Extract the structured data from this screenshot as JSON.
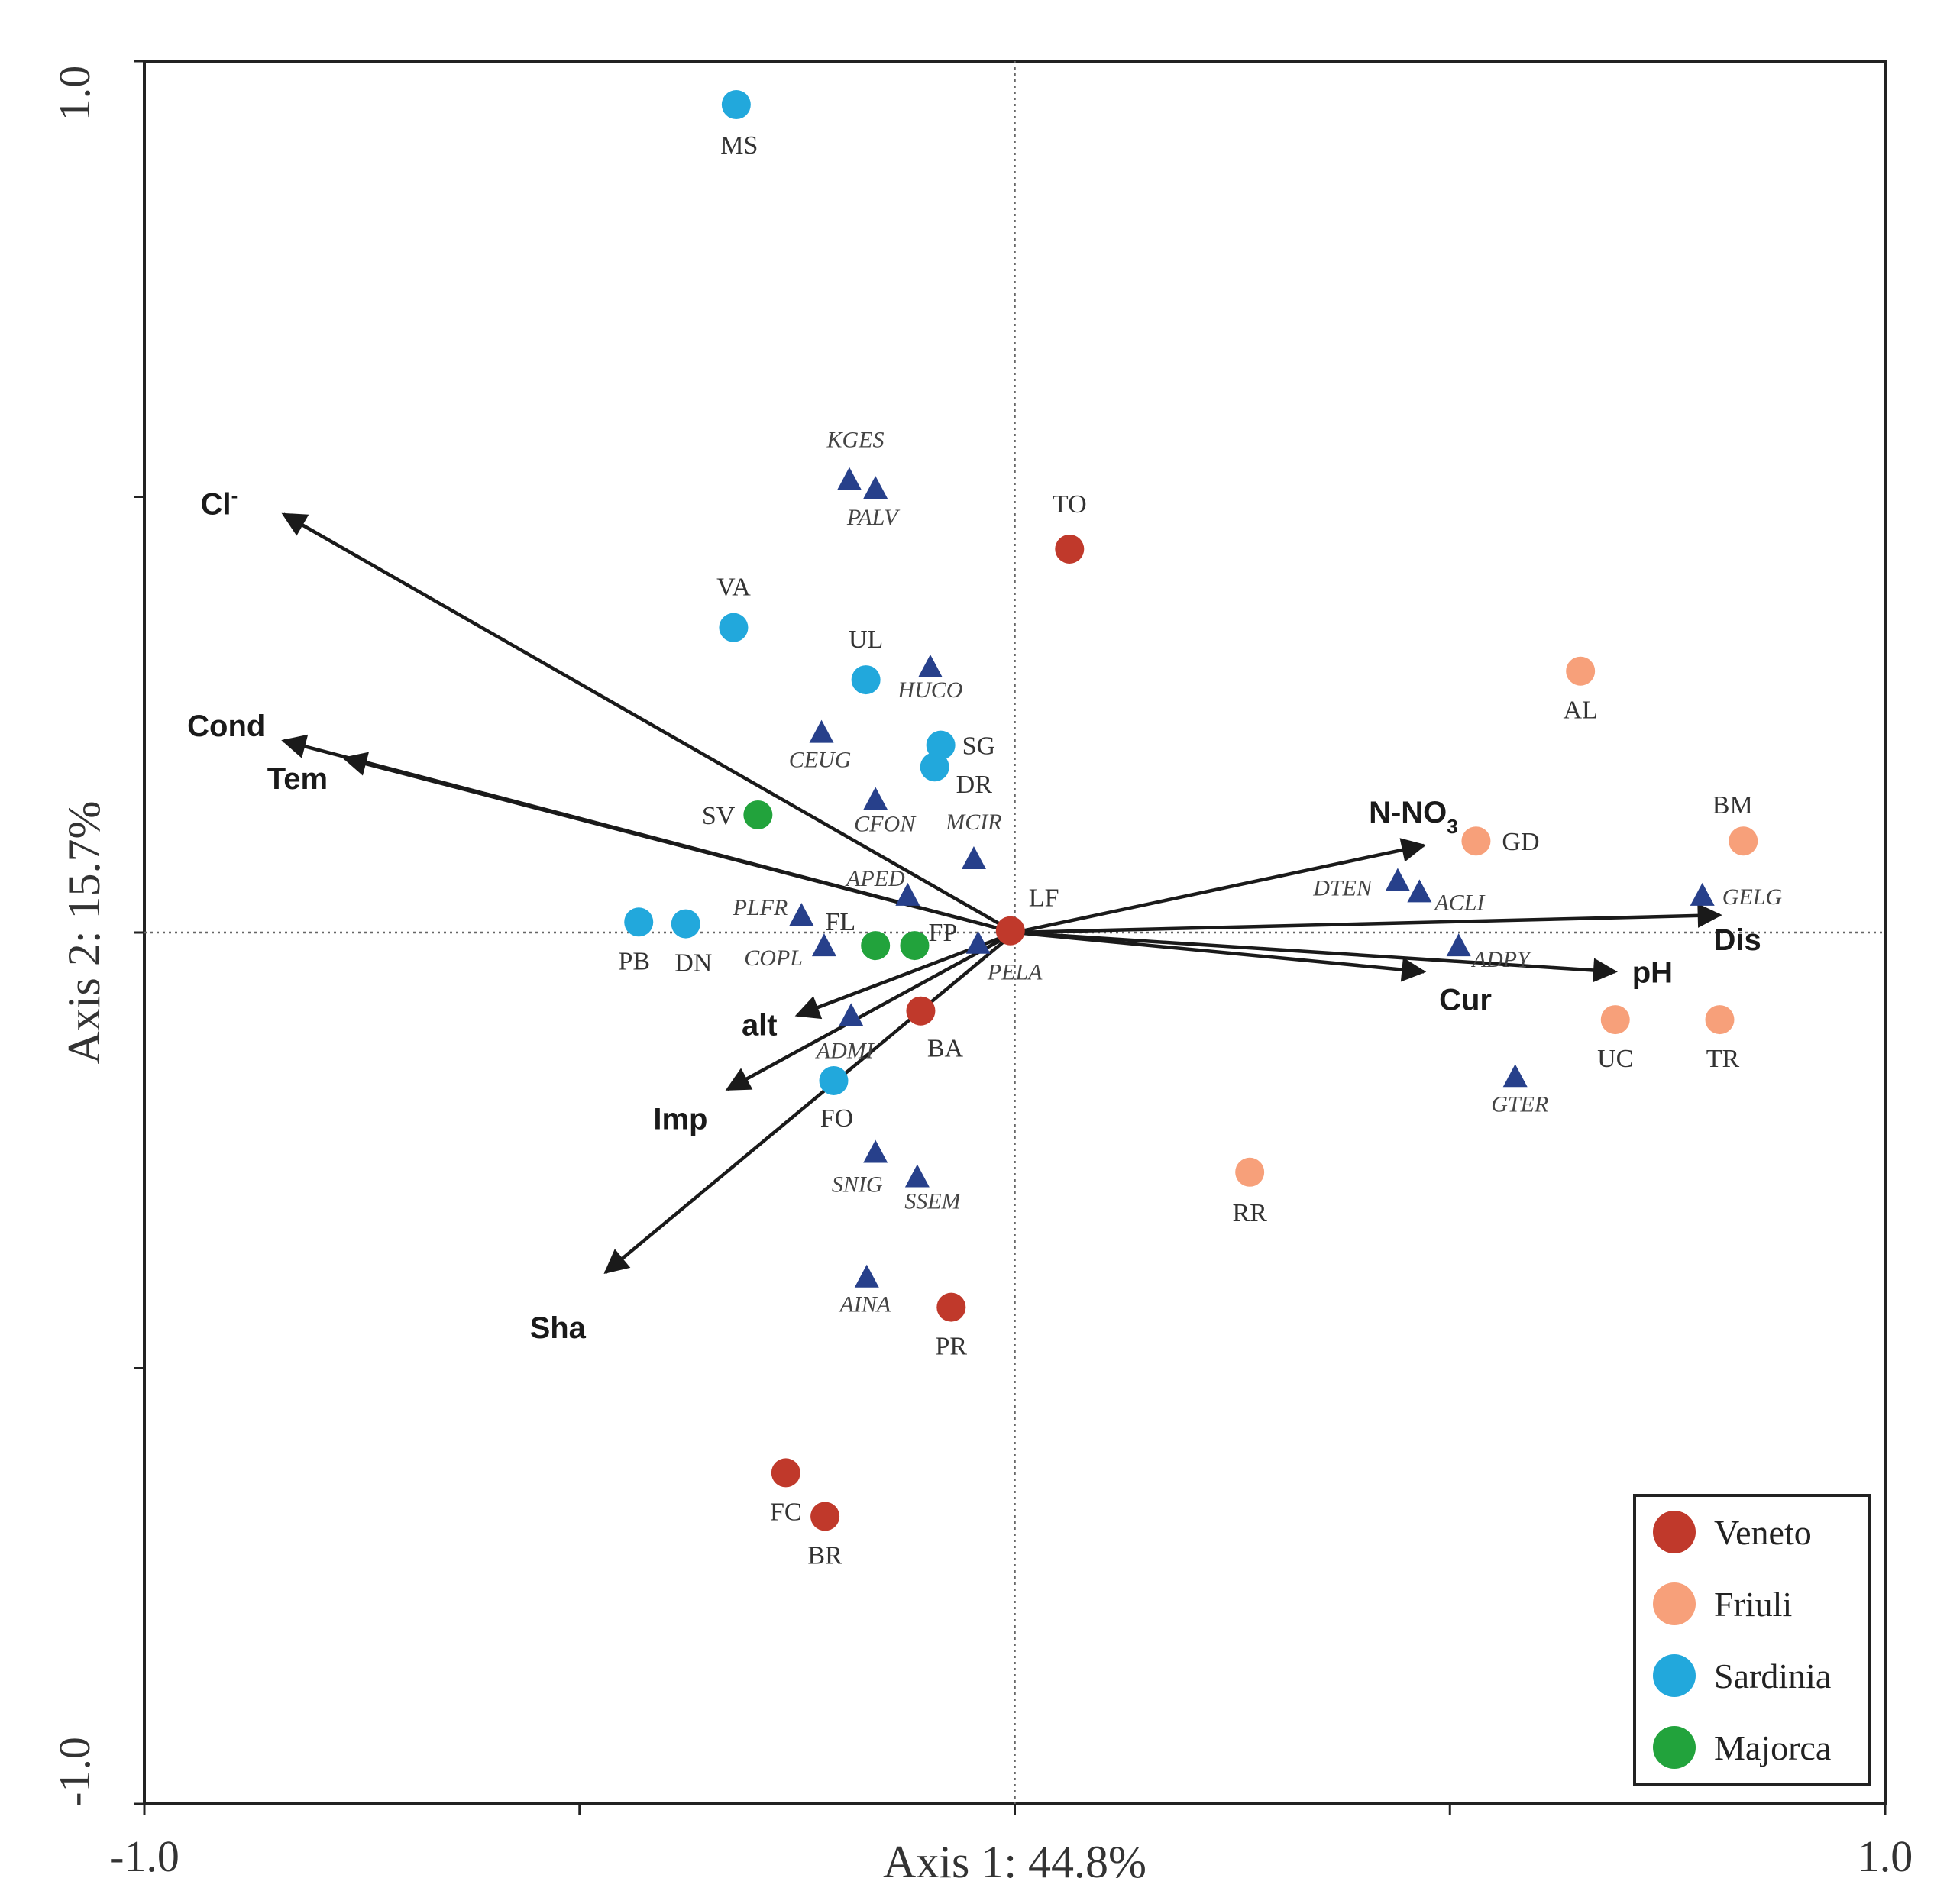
{
  "chart_data": {
    "type": "scatter",
    "subtype": "ordination-biplot",
    "xlabel": "Axis 1: 44.8%",
    "ylabel": "Axis 2: 15.7%",
    "xlim": [
      -1.0,
      1.0
    ],
    "ylim": [
      -1.0,
      1.0
    ],
    "x_tick_labels": [
      {
        "value": -1.0,
        "label": "-1.0"
      },
      {
        "value": 1.0,
        "label": "1.0"
      }
    ],
    "y_tick_labels": [
      {
        "value": 1.0,
        "label": "1.0"
      },
      {
        "value": -1.0,
        "label": "-1.0"
      }
    ],
    "grid": false,
    "origin_lines": true,
    "colors": {
      "Veneto": "#c0392b",
      "Friuli": "#f7a07a",
      "Sardinia": "#22a8dc",
      "Majorca": "#22a33c",
      "species": "#27408b",
      "arrow": "#1a1a1a"
    },
    "legend": {
      "position": "bottom-right",
      "entries": [
        "Veneto",
        "Friuli",
        "Sardinia",
        "Majorca"
      ]
    },
    "environmental_vectors": [
      {
        "name": "Cl",
        "superscript": "-",
        "x": -0.84,
        "y": 0.48
      },
      {
        "name": "Cond",
        "x": -0.84,
        "y": 0.22
      },
      {
        "name": "Tem",
        "x": -0.77,
        "y": 0.2
      },
      {
        "name": "N-NO",
        "subscript": "3",
        "x": 0.47,
        "y": 0.1
      },
      {
        "name": "Dis",
        "x": 0.81,
        "y": 0.02
      },
      {
        "name": "pH",
        "x": 0.69,
        "y": -0.045
      },
      {
        "name": "Cur",
        "x": 0.47,
        "y": -0.045
      },
      {
        "name": "alt",
        "x": -0.25,
        "y": -0.095
      },
      {
        "name": "Imp",
        "x": -0.33,
        "y": -0.18
      },
      {
        "name": "Sha",
        "x": -0.47,
        "y": -0.39
      }
    ],
    "sites": [
      {
        "label": "MS",
        "region": "Sardinia",
        "x": -0.32,
        "y": 0.95
      },
      {
        "label": "TO",
        "region": "Veneto",
        "x": 0.063,
        "y": 0.44
      },
      {
        "label": "VA",
        "region": "Sardinia",
        "x": -0.323,
        "y": 0.35
      },
      {
        "label": "UL",
        "region": "Sardinia",
        "x": -0.171,
        "y": 0.29
      },
      {
        "label": "SG",
        "region": "Sardinia",
        "x": -0.085,
        "y": 0.215
      },
      {
        "label": "DR",
        "region": "Sardinia",
        "x": -0.092,
        "y": 0.19
      },
      {
        "label": "SV",
        "region": "Majorca",
        "x": -0.295,
        "y": 0.135
      },
      {
        "label": "PB",
        "region": "Sardinia",
        "x": -0.432,
        "y": 0.012
      },
      {
        "label": "DN",
        "region": "Sardinia",
        "x": -0.378,
        "y": 0.01
      },
      {
        "label": "FL",
        "region": "Majorca",
        "x": -0.16,
        "y": -0.015
      },
      {
        "label": "FP",
        "region": "Majorca",
        "x": -0.115,
        "y": -0.015
      },
      {
        "label": "LF",
        "region": "Veneto",
        "x": -0.005,
        "y": 0.002
      },
      {
        "label": "BA",
        "region": "Veneto",
        "x": -0.108,
        "y": -0.09
      },
      {
        "label": "FO",
        "region": "Sardinia",
        "x": -0.208,
        "y": -0.17
      },
      {
        "label": "PR",
        "region": "Veneto",
        "x": -0.073,
        "y": -0.43
      },
      {
        "label": "FC",
        "region": "Veneto",
        "x": -0.263,
        "y": -0.62
      },
      {
        "label": "BR",
        "region": "Veneto",
        "x": -0.218,
        "y": -0.67
      },
      {
        "label": "AL",
        "region": "Friuli",
        "x": 0.65,
        "y": 0.3
      },
      {
        "label": "GD",
        "region": "Friuli",
        "x": 0.53,
        "y": 0.105
      },
      {
        "label": "BM",
        "region": "Friuli",
        "x": 0.837,
        "y": 0.105
      },
      {
        "label": "UC",
        "region": "Friuli",
        "x": 0.69,
        "y": -0.1
      },
      {
        "label": "TR",
        "region": "Friuli",
        "x": 0.81,
        "y": -0.1
      },
      {
        "label": "RR",
        "region": "Friuli",
        "x": 0.27,
        "y": -0.275
      }
    ],
    "species": [
      {
        "label": "KGES",
        "x": -0.19,
        "y": 0.52
      },
      {
        "label": "PALV",
        "x": -0.16,
        "y": 0.51
      },
      {
        "label": "HUCO",
        "x": -0.097,
        "y": 0.305
      },
      {
        "label": "CEUG",
        "x": -0.222,
        "y": 0.23
      },
      {
        "label": "CFON",
        "x": -0.16,
        "y": 0.153
      },
      {
        "label": "MCIR",
        "x": -0.047,
        "y": 0.085
      },
      {
        "label": "APED",
        "x": -0.123,
        "y": 0.043
      },
      {
        "label": "PLFR",
        "x": -0.245,
        "y": 0.02
      },
      {
        "label": "COPL",
        "x": -0.219,
        "y": -0.015
      },
      {
        "label": "PELA",
        "x": -0.042,
        "y": -0.012
      },
      {
        "label": "ADMI",
        "x": -0.188,
        "y": -0.095
      },
      {
        "label": "SNIG",
        "x": -0.16,
        "y": -0.252
      },
      {
        "label": "SSEM",
        "x": -0.112,
        "y": -0.28
      },
      {
        "label": "AINA",
        "x": -0.17,
        "y": -0.395
      },
      {
        "label": "DTEN",
        "x": 0.44,
        "y": 0.06
      },
      {
        "label": "ACLI",
        "x": 0.465,
        "y": 0.047
      },
      {
        "label": "ADPY",
        "x": 0.51,
        "y": -0.015
      },
      {
        "label": "GELG",
        "x": 0.79,
        "y": 0.043
      },
      {
        "label": "GTER",
        "x": 0.575,
        "y": -0.165
      }
    ]
  }
}
